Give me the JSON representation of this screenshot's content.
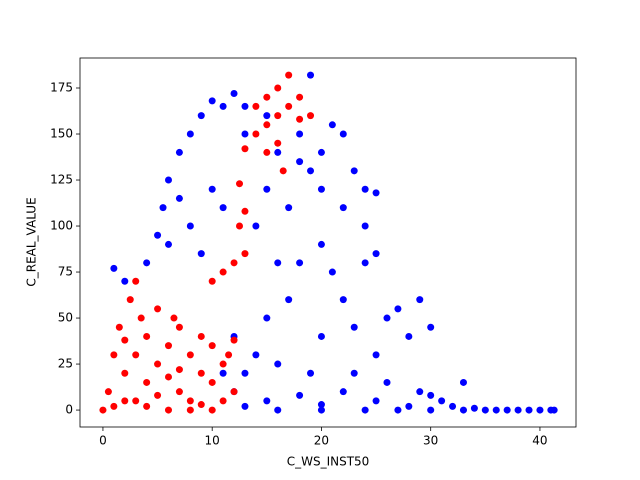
{
  "chart_data": {
    "type": "scatter",
    "xlabel": "C_WS_INST50",
    "ylabel": "C_REAL_VALUE",
    "xlim": [
      -2.1,
      43.3
    ],
    "ylim": [
      -9.2,
      191.3
    ],
    "xticks": [
      0,
      10,
      20,
      30,
      40
    ],
    "yticks": [
      0,
      25,
      50,
      75,
      100,
      125,
      150,
      175
    ],
    "series": [
      {
        "color": "#0000ff",
        "x": [
          1,
          2,
          4,
          5,
          5.5,
          6,
          7,
          8,
          9,
          10,
          12,
          13,
          15,
          18,
          20,
          21,
          22,
          23,
          24,
          25,
          24,
          22,
          20,
          19,
          18,
          10,
          11,
          8,
          7,
          6,
          9,
          17,
          18,
          20,
          21,
          22,
          23,
          24,
          25,
          26,
          27,
          28,
          29,
          30,
          25,
          20,
          15,
          14,
          13,
          12,
          15,
          18,
          20,
          22,
          25,
          28,
          30,
          32,
          33,
          34,
          35,
          36,
          37,
          38,
          39,
          40,
          41,
          41.3,
          16,
          19,
          23,
          26,
          29,
          31,
          14,
          15,
          16,
          17,
          19,
          13,
          11,
          16,
          12,
          11,
          13,
          16,
          20,
          24,
          27,
          30,
          33
        ],
        "values": [
          77,
          70,
          80,
          95,
          110,
          125,
          140,
          150,
          160,
          168,
          172,
          165,
          160,
          150,
          140,
          155,
          150,
          130,
          120,
          118,
          100,
          110,
          120,
          130,
          135,
          120,
          110,
          100,
          115,
          90,
          85,
          60,
          80,
          90,
          75,
          60,
          45,
          80,
          85,
          50,
          55,
          40,
          60,
          45,
          30,
          40,
          50,
          30,
          20,
          10,
          5,
          8,
          3,
          10,
          5,
          2,
          8,
          2,
          15,
          1,
          0,
          0,
          0,
          0,
          0,
          0,
          0,
          0,
          25,
          20,
          20,
          15,
          10,
          5,
          100,
          120,
          140,
          110,
          182,
          150,
          165,
          80,
          40,
          20,
          2,
          0,
          0,
          0,
          0,
          0,
          0
        ]
      },
      {
        "color": "#ff0000",
        "x": [
          0,
          0.5,
          1,
          1.5,
          2,
          2.5,
          3,
          3,
          4,
          4,
          5,
          5,
          6,
          6,
          7,
          7,
          8,
          8,
          9,
          9,
          10,
          10,
          11,
          11,
          12,
          12,
          11,
          12,
          12.5,
          13,
          12.5,
          13,
          14,
          14,
          15,
          15,
          16,
          16,
          17,
          17,
          18,
          18,
          19,
          16,
          15,
          16.5,
          13,
          10,
          2,
          4,
          6,
          8,
          3,
          1,
          5,
          7,
          9,
          10,
          11.5,
          2,
          3.5,
          6.5
        ],
        "values": [
          0,
          10,
          30,
          45,
          20,
          60,
          70,
          5,
          15,
          40,
          25,
          55,
          35,
          0,
          10,
          45,
          30,
          5,
          20,
          40,
          15,
          35,
          25,
          5,
          10,
          38,
          75,
          80,
          100,
          108,
          123,
          142,
          150,
          165,
          170,
          155,
          175,
          160,
          182,
          165,
          170,
          158,
          160,
          145,
          140,
          130,
          85,
          70,
          5,
          2,
          18,
          0,
          30,
          2,
          8,
          22,
          3,
          0,
          30,
          38,
          50,
          50
        ]
      }
    ]
  }
}
